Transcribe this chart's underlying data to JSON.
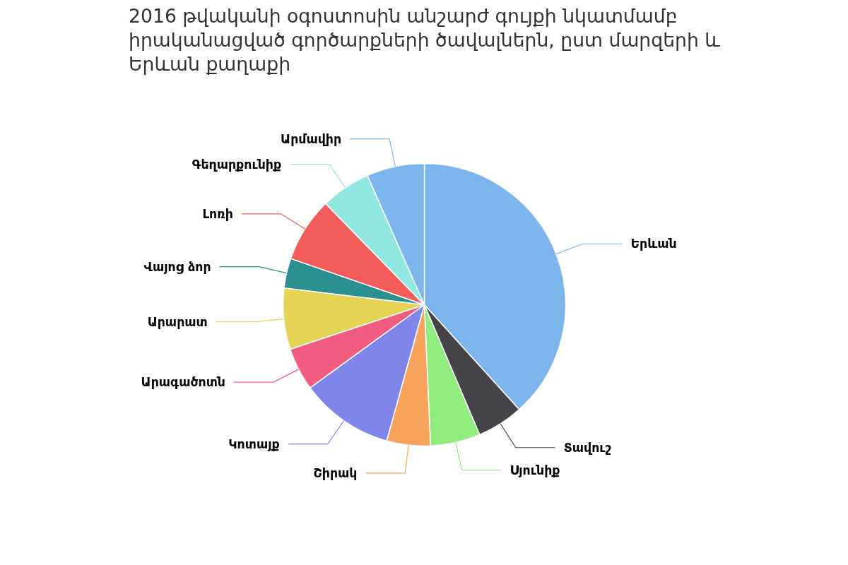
{
  "chart_data": {
    "type": "pie",
    "title": "2016 թվականի օգոստոսին անշարժ գույքի նկատմամբ իրականացված գործարքների ծավալներն, ըստ մարզերի և Երևան քաղաքի",
    "categories": [
      "Երևան",
      "Տավուշ",
      "Սյունիք",
      "Շիրակ",
      "Կոտայք",
      "Արագածոտն",
      "Արարատ",
      "Վայոց ձոր",
      "Լոռի",
      "Գեղարքունիք",
      "Արմավիր"
    ],
    "values": [
      38.3,
      5.3,
      5.7,
      5.0,
      10.7,
      4.9,
      7.0,
      3.4,
      7.4,
      5.7,
      6.6
    ],
    "colors": [
      "#7cb5ec",
      "#434348",
      "#90ed7d",
      "#f7a35c",
      "#8085e9",
      "#f15c80",
      "#e4d354",
      "#2b908f",
      "#f45b5b",
      "#91e8e1",
      "#7cb5ec"
    ]
  }
}
